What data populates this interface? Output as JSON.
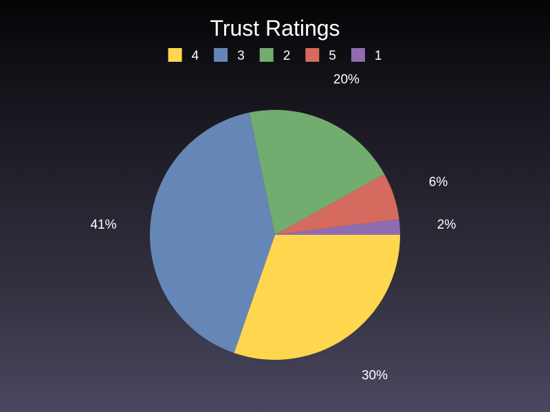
{
  "chart_data": {
    "type": "pie",
    "title": "Trust Ratings",
    "legend_position": "top",
    "start_angle_deg": 0,
    "direction": "clockwise",
    "slices": [
      {
        "label": "4",
        "value": 30,
        "percent_label": "30%",
        "color": "#fed74f"
      },
      {
        "label": "3",
        "value": 41,
        "percent_label": "41%",
        "color": "#6686b7"
      },
      {
        "label": "2",
        "value": 20,
        "percent_label": "20%",
        "color": "#72ad6f"
      },
      {
        "label": "5",
        "value": 6,
        "percent_label": "6%",
        "color": "#d56a5f"
      },
      {
        "label": "1",
        "value": 2,
        "percent_label": "2%",
        "color": "#8f6cb0"
      }
    ]
  }
}
